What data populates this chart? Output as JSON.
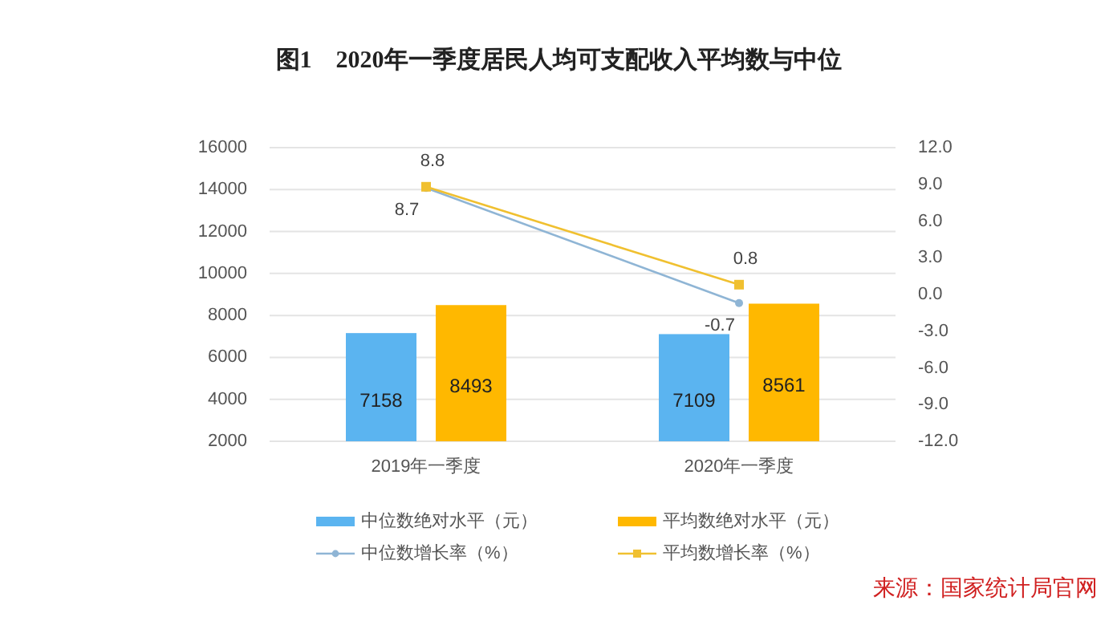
{
  "chart_data": {
    "type": "bar",
    "title": "图1　2020年一季度居民人均可支配收入平均数与中位",
    "categories": [
      "2019年一季度",
      "2020年一季度"
    ],
    "series": [
      {
        "name": "中位数绝对水平（元）",
        "color": "#5bb4f0",
        "values": [
          7158,
          7109
        ]
      },
      {
        "name": "平均数绝对水平（元）",
        "color": "#ffb800",
        "values": [
          8493,
          8561
        ]
      },
      {
        "name": "中位数增长率（%）",
        "type": "line",
        "axis": "y2",
        "color": "#8fb5d5",
        "marker": "circle",
        "values": [
          8.7,
          -0.7
        ]
      },
      {
        "name": "平均数增长率（%）",
        "type": "line",
        "axis": "y2",
        "color": "#f0c030",
        "marker": "square",
        "values": [
          8.8,
          0.8
        ]
      }
    ],
    "ylim": [
      2000,
      16000
    ],
    "yticks": [
      2000,
      4000,
      6000,
      8000,
      10000,
      12000,
      14000,
      16000
    ],
    "y2lim": [
      -12,
      12
    ],
    "y2ticks": [
      {
        "value": -12,
        "label": "-12.0"
      },
      {
        "value": -9,
        "label": "-9.0"
      },
      {
        "value": -6,
        "label": "-6.0"
      },
      {
        "value": -3,
        "label": "-3.0"
      },
      {
        "value": 0,
        "label": "0.0"
      },
      {
        "value": 3,
        "label": "3.0"
      },
      {
        "value": 6,
        "label": "6.0"
      },
      {
        "value": 9,
        "label": "9.0"
      },
      {
        "value": 12,
        "label": "12.0"
      }
    ],
    "grid": "y",
    "legend": "bottom",
    "data_labels": true,
    "annotations": [
      "来源：国家统计局官网"
    ]
  }
}
